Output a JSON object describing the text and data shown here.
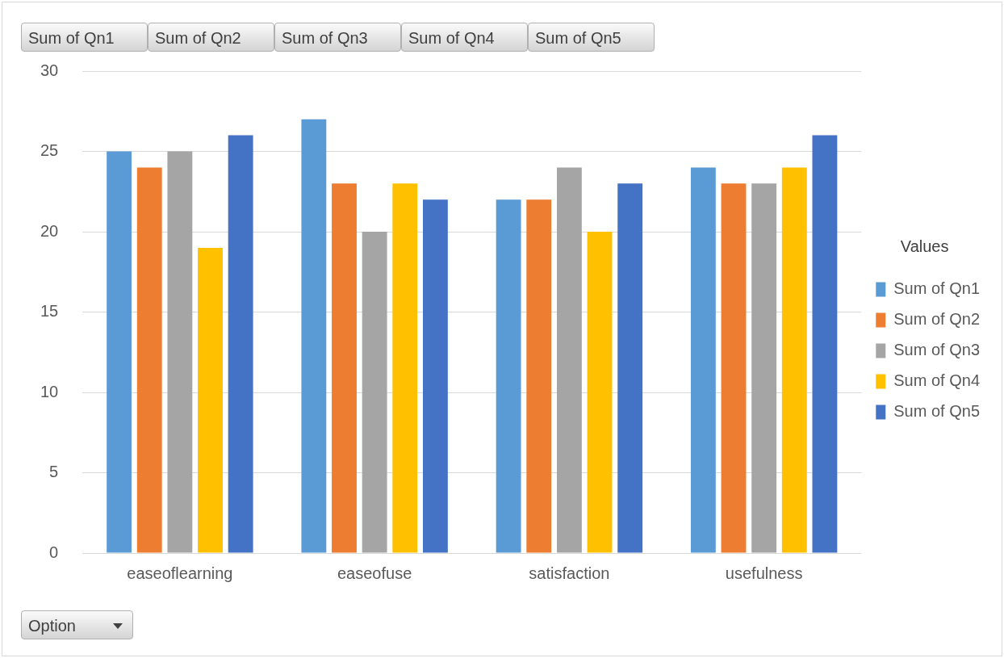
{
  "chart_data": {
    "type": "bar",
    "categories": [
      "easeoflearning",
      "easeofuse",
      "satisfaction",
      "usefulness"
    ],
    "series": [
      {
        "name": "Sum of Qn1",
        "color": "#5b9bd5",
        "values": [
          25,
          27,
          22,
          24
        ]
      },
      {
        "name": "Sum of Qn2",
        "color": "#ed7d31",
        "values": [
          24,
          23,
          22,
          23
        ]
      },
      {
        "name": "Sum of Qn3",
        "color": "#a5a5a5",
        "values": [
          25,
          20,
          24,
          23
        ]
      },
      {
        "name": "Sum of Qn4",
        "color": "#ffc000",
        "values": [
          19,
          23,
          20,
          24
        ]
      },
      {
        "name": "Sum of Qn5",
        "color": "#4472c4",
        "values": [
          26,
          22,
          23,
          26
        ]
      }
    ],
    "legend_title": "Values",
    "legend": "right",
    "grid": "y",
    "ylim": [
      0,
      30
    ],
    "yticks": [
      0,
      5,
      10,
      15,
      20,
      25,
      30
    ],
    "annotations": [
      "Option"
    ]
  }
}
